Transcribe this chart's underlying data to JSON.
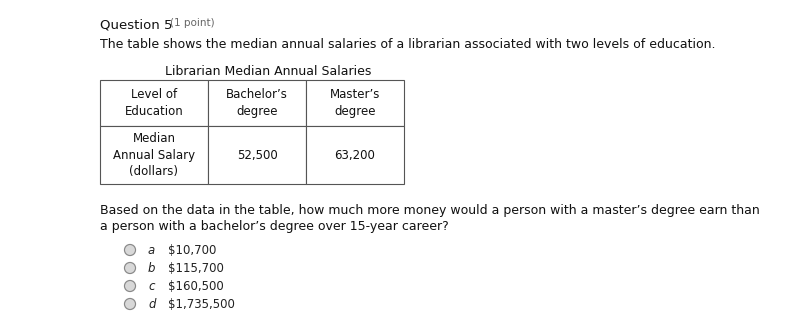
{
  "bg_color": "#ffffff",
  "title": "Question 5",
  "title_point": "(1 point)",
  "intro_text": "The table shows the median annual salaries of a librarian associated with two levels of education.",
  "table_title": "Librarian Median Annual Salaries",
  "col_headers": [
    "Level of\nEducation",
    "Bachelor’s\ndegree",
    "Master’s\ndegree"
  ],
  "row_label": "Median\nAnnual Salary\n(dollars)",
  "bachelor_val": "52,500",
  "master_val": "63,200",
  "question_line1": "Based on the data in the table, how much more money would a person with a master’s degree earn than",
  "question_line2": "a person with a bachelor’s degree over 15-year career?",
  "choices": [
    {
      "letter": "a",
      "text": "$10,700"
    },
    {
      "letter": "b",
      "text": "$115,700"
    },
    {
      "letter": "c",
      "text": "$160,500"
    },
    {
      "letter": "d",
      "text": "$1,735,500"
    }
  ]
}
